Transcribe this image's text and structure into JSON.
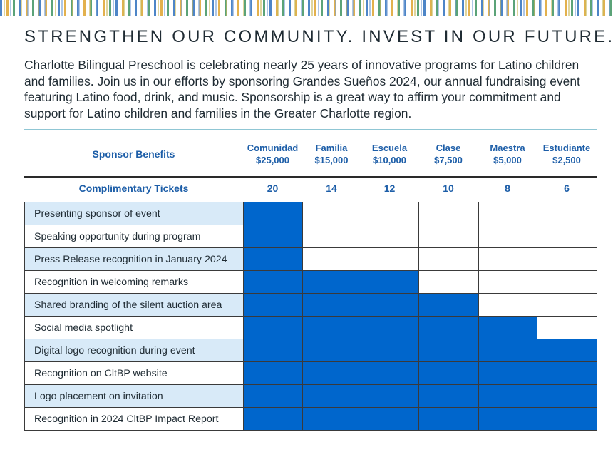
{
  "headline": "STRENGTHEN OUR COMMUNITY. INVEST IN OUR FUTURE.",
  "intro": "Charlotte Bilingual Preschool is celebrating nearly 25 years of innovative programs for Latino children and families. Join us in our efforts by sponsoring Grandes Sueños 2024, our annual fundraising event featuring Latino food, drink, and music. Sponsorship is a great way to affirm your commitment and support for Latino children and families in the Greater Charlotte region.",
  "colors": {
    "heading_blue": "#1d5ea8",
    "fill_blue": "#0066cc",
    "row_shade": "#d8eaf8",
    "rule": "#8fc6d4"
  },
  "table": {
    "benefits_header": "Sponsor Benefits",
    "tickets_label": "Complimentary Tickets",
    "levels": [
      {
        "name": "Comunidad",
        "amount": "$25,000",
        "tickets": "20"
      },
      {
        "name": "Familia",
        "amount": "$15,000",
        "tickets": "14"
      },
      {
        "name": "Escuela",
        "amount": "$10,000",
        "tickets": "12"
      },
      {
        "name": "Clase",
        "amount": "$7,500",
        "tickets": "10"
      },
      {
        "name": "Maestra",
        "amount": "$5,000",
        "tickets": "8"
      },
      {
        "name": "Estudiante",
        "amount": "$2,500",
        "tickets": "6"
      }
    ],
    "rows": [
      {
        "benefit": "Presenting sponsor of event",
        "included": [
          true,
          false,
          false,
          false,
          false,
          false
        ]
      },
      {
        "benefit": "Speaking opportunity during program",
        "included": [
          true,
          false,
          false,
          false,
          false,
          false
        ]
      },
      {
        "benefit": "Press Release recognition in January 2024",
        "included": [
          true,
          false,
          false,
          false,
          false,
          false
        ]
      },
      {
        "benefit": "Recognition in welcoming remarks",
        "included": [
          true,
          true,
          true,
          false,
          false,
          false
        ]
      },
      {
        "benefit": "Shared branding of the silent auction area",
        "included": [
          true,
          true,
          true,
          true,
          false,
          false
        ]
      },
      {
        "benefit": "Social media spotlight",
        "included": [
          true,
          true,
          true,
          true,
          true,
          false
        ]
      },
      {
        "benefit": "Digital logo recognition during event",
        "included": [
          true,
          true,
          true,
          true,
          true,
          true
        ]
      },
      {
        "benefit": "Recognition on CltBP website",
        "included": [
          true,
          true,
          true,
          true,
          true,
          true
        ]
      },
      {
        "benefit": "Logo placement on invitation",
        "included": [
          true,
          true,
          true,
          true,
          true,
          true
        ]
      },
      {
        "benefit": "Recognition in 2024 CltBP Impact Report",
        "included": [
          true,
          true,
          true,
          true,
          true,
          true
        ]
      }
    ]
  }
}
